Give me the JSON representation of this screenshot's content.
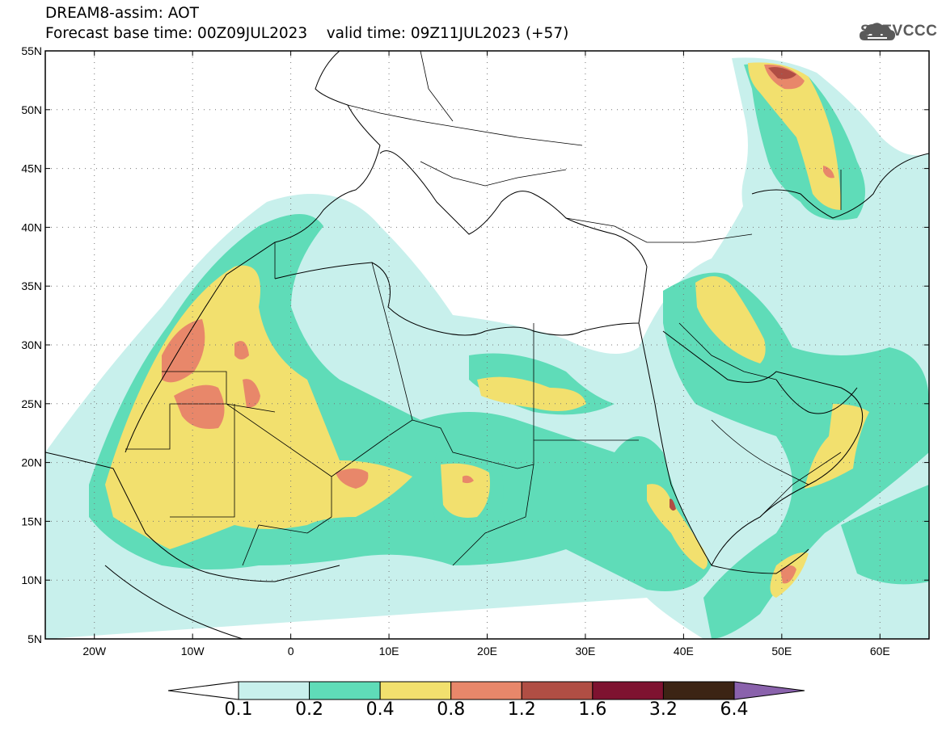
{
  "title": {
    "line1": "DREAM8-assim: AOT",
    "line2": "Forecast base time: 00Z09JUL2023    valid time: 09Z11JUL2023 (+57)"
  },
  "logo": {
    "text": "SEEVCCC",
    "icon": "cloud-icon"
  },
  "map": {
    "lon_range": [
      -25,
      65
    ],
    "lat_range": [
      5,
      55
    ],
    "lat_labels": [
      "55N",
      "50N",
      "45N",
      "40N",
      "35N",
      "30N",
      "25N",
      "20N",
      "15N",
      "10N",
      "5N"
    ],
    "lon_labels": [
      "20W",
      "10W",
      "0",
      "10E",
      "20E",
      "30E",
      "40E",
      "50E",
      "60E"
    ],
    "grid": "dotted"
  },
  "colorbar": {
    "ticks": [
      "0.1",
      "0.2",
      "0.4",
      "0.8",
      "1.2",
      "1.6",
      "3.2",
      "6.4"
    ],
    "colors": [
      "#c8f0ec",
      "#5fdcb8",
      "#f2e06e",
      "#e8876a",
      "#b04e44",
      "#7e1230",
      "#3c2414"
    ],
    "under_color": "#ffffff",
    "over_color": "#8a62ac"
  }
}
